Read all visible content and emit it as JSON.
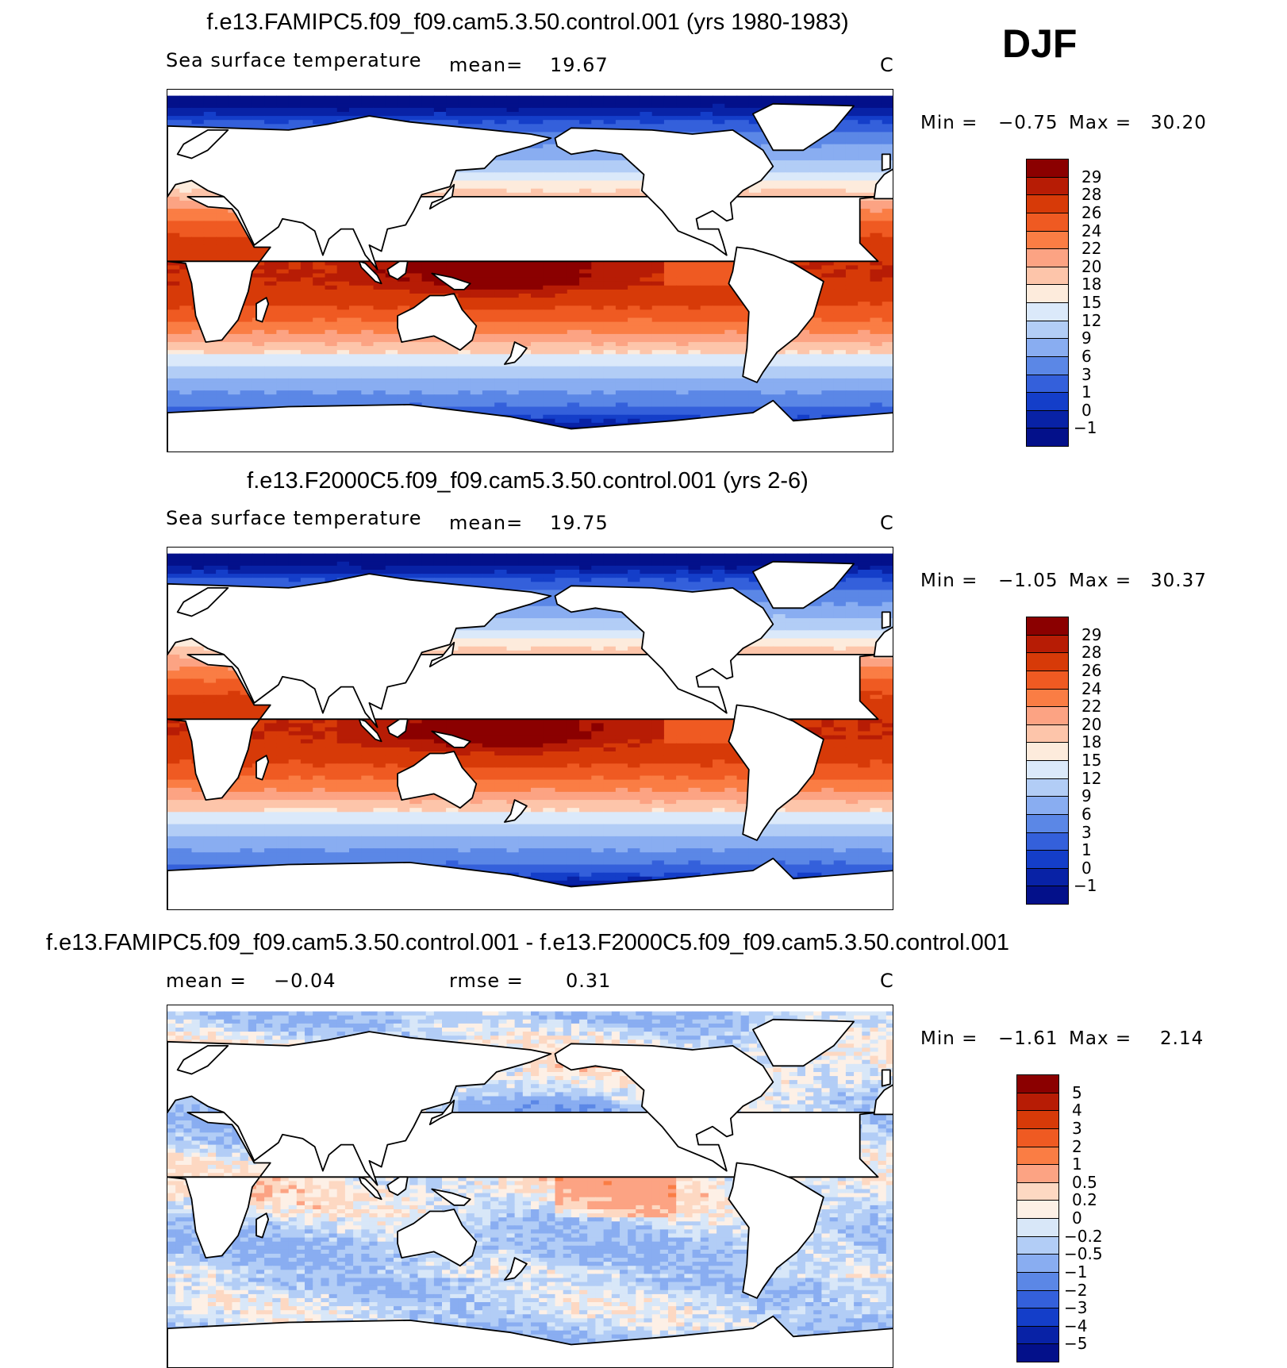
{
  "season": "DJF",
  "panels": [
    {
      "title": "f.e13.FAMIPC5.f09_f09.cam5.3.50.control.001 (yrs 1980-1983)",
      "variable": "Sea surface temperature",
      "mean_label": "mean=",
      "mean_value": "19.67",
      "rmse_label": "",
      "rmse_value": "",
      "units": "C",
      "min_label": "Min =",
      "min_value": "−0.75",
      "max_label": "Max =",
      "max_value": "30.20",
      "field": "abs"
    },
    {
      "title": "f.e13.F2000C5.f09_f09.cam5.3.50.control.001 (yrs 2-6)",
      "variable": "Sea surface temperature",
      "mean_label": "mean=",
      "mean_value": "19.75",
      "rmse_label": "",
      "rmse_value": "",
      "units": "C",
      "min_label": "Min =",
      "min_value": "−1.05",
      "max_label": "Max =",
      "max_value": "30.37",
      "field": "abs"
    },
    {
      "title": "f.e13.FAMIPC5.f09_f09.cam5.3.50.control.001 - f.e13.F2000C5.f09_f09.cam5.3.50.control.001",
      "variable": "",
      "mean_label": "mean =",
      "mean_value": "−0.04",
      "rmse_label": "rmse =",
      "rmse_value": "0.31",
      "units": "C",
      "min_label": "Min =",
      "min_value": "−1.61",
      "max_label": "Max =",
      "max_value": "2.14",
      "field": "diff"
    }
  ],
  "chart_data": [
    {
      "type": "heatmap",
      "title": "f.e13.FAMIPC5.f09_f09.cam5.3.50.control.001 (yrs 1980-1983)",
      "subtitle": "Sea surface temperature",
      "units": "C",
      "mean": 19.67,
      "min": -0.75,
      "max": 30.2,
      "legend_placement": "right",
      "colorbar_levels": [
        "29",
        "28",
        "26",
        "24",
        "22",
        "20",
        "18",
        "15",
        "12",
        "9",
        "6",
        "3",
        "1",
        "0",
        "−1"
      ]
    },
    {
      "type": "heatmap",
      "title": "f.e13.F2000C5.f09_f09.cam5.3.50.control.001 (yrs 2-6)",
      "subtitle": "Sea surface temperature",
      "units": "C",
      "mean": 19.75,
      "min": -1.05,
      "max": 30.37,
      "legend_placement": "right",
      "colorbar_levels": [
        "29",
        "28",
        "26",
        "24",
        "22",
        "20",
        "18",
        "15",
        "12",
        "9",
        "6",
        "3",
        "1",
        "0",
        "−1"
      ]
    },
    {
      "type": "heatmap",
      "title": "f.e13.FAMIPC5.f09_f09.cam5.3.50.control.001 - f.e13.F2000C5.f09_f09.cam5.3.50.control.001",
      "units": "C",
      "mean": -0.04,
      "rmse": 0.31,
      "min": -1.61,
      "max": 2.14,
      "legend_placement": "right",
      "colorbar_levels": [
        "5",
        "4",
        "3",
        "2",
        "1",
        "0.5",
        "0.2",
        "0",
        "−0.2",
        "−0.5",
        "−1",
        "−2",
        "−3",
        "−4",
        "−5"
      ]
    }
  ],
  "colors": {
    "abs_scale": [
      "#8b0000",
      "#b71c05",
      "#d73a08",
      "#ef5a22",
      "#fa7d44",
      "#fca383",
      "#fdc5aa",
      "#fdebdc",
      "#dbe9fa",
      "#b2cdf6",
      "#89adf1",
      "#5b87e6",
      "#3460db",
      "#143ec9",
      "#0822a6",
      "#03108a"
    ],
    "diff_scale": [
      "#8b0000",
      "#b71c05",
      "#d73a08",
      "#ef5a22",
      "#fa7d44",
      "#fca383",
      "#fdd8c2",
      "#fdf0e6",
      "#d8e7f8",
      "#b2cdf6",
      "#89adf1",
      "#5b87e6",
      "#3460db",
      "#143ec9",
      "#0822a6",
      "#03108a"
    ],
    "land": "#ffffff",
    "coastline": "#000000"
  }
}
